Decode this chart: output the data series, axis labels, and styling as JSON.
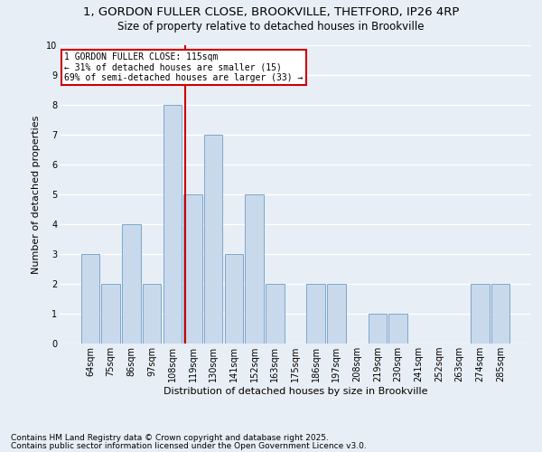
{
  "title1": "1, GORDON FULLER CLOSE, BROOKVILLE, THETFORD, IP26 4RP",
  "title2": "Size of property relative to detached houses in Brookville",
  "xlabel": "Distribution of detached houses by size in Brookville",
  "ylabel": "Number of detached properties",
  "categories": [
    "64sqm",
    "75sqm",
    "86sqm",
    "97sqm",
    "108sqm",
    "119sqm",
    "130sqm",
    "141sqm",
    "152sqm",
    "163sqm",
    "175sqm",
    "186sqm",
    "197sqm",
    "208sqm",
    "219sqm",
    "230sqm",
    "241sqm",
    "252sqm",
    "263sqm",
    "274sqm",
    "285sqm"
  ],
  "values": [
    3,
    2,
    4,
    2,
    8,
    5,
    7,
    3,
    5,
    2,
    0,
    2,
    2,
    0,
    1,
    1,
    0,
    0,
    0,
    2,
    2
  ],
  "bar_color": "#c9d9ec",
  "bar_edge_color": "#7ba7cc",
  "background_color": "#e8eef5",
  "grid_color": "#ffffff",
  "ref_line_label": "1 GORDON FULLER CLOSE: 115sqm",
  "annotation_left": "← 31% of detached houses are smaller (15)",
  "annotation_right": "69% of semi-detached houses are larger (33) →",
  "annotation_box_color": "#ffffff",
  "annotation_box_edge": "#cc0000",
  "ref_line_color": "#cc0000",
  "ylim": [
    0,
    10
  ],
  "yticks": [
    0,
    1,
    2,
    3,
    4,
    5,
    6,
    7,
    8,
    9,
    10
  ],
  "footnote1": "Contains HM Land Registry data © Crown copyright and database right 2025.",
  "footnote2": "Contains public sector information licensed under the Open Government Licence v3.0.",
  "title1_fontsize": 9.5,
  "title2_fontsize": 8.5,
  "xlabel_fontsize": 8,
  "ylabel_fontsize": 8,
  "tick_fontsize": 7,
  "annot_fontsize": 7,
  "footnote_fontsize": 6.5
}
